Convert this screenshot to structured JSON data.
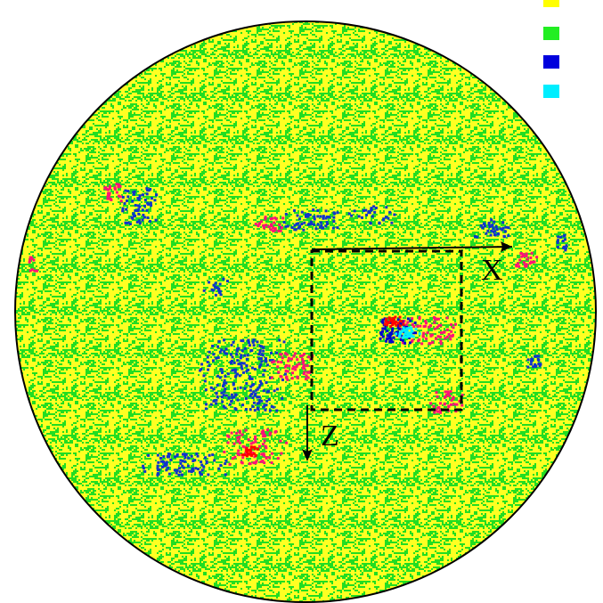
{
  "labels": {
    "x_axis": "X",
    "z_axis": "Z"
  }
}
